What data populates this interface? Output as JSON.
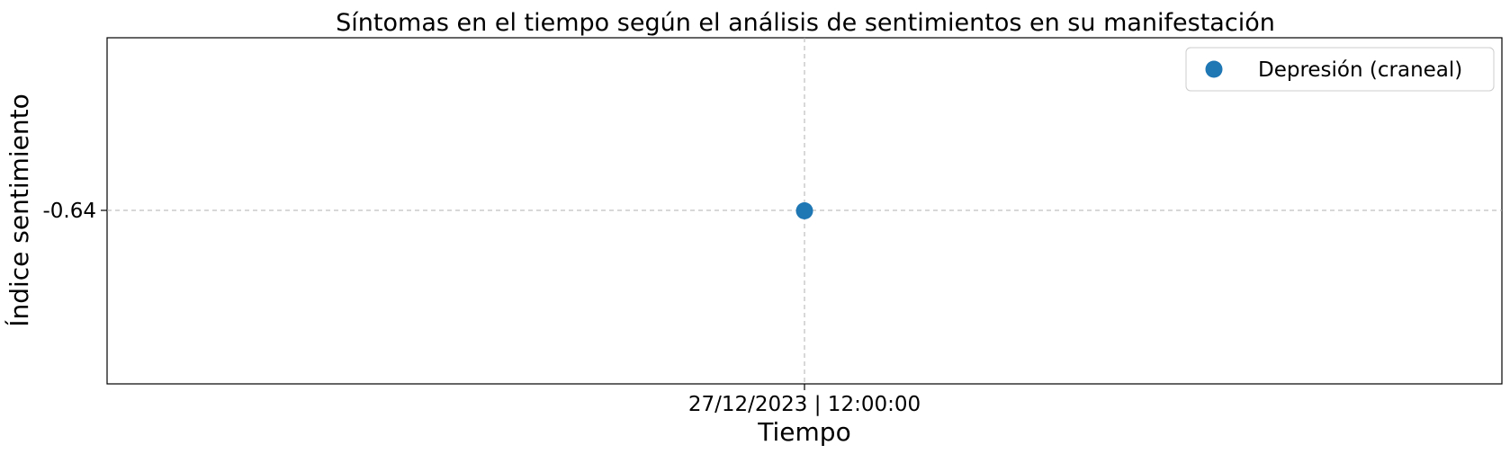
{
  "chart_data": {
    "type": "scatter",
    "title": "Síntomas en el tiempo según el análisis de sentimientos en su manifestación",
    "xlabel": "Tiempo",
    "ylabel": "Índice sentimiento",
    "x_ticks": [
      "27/12/2023 | 12:00:00"
    ],
    "y_ticks": [
      "-0.64"
    ],
    "grid": true,
    "legend_position": "top-right",
    "series": [
      {
        "name": "Depresión (craneal)",
        "color": "#1f77b4",
        "points": [
          {
            "x": "27/12/2023 | 12:00:00",
            "y": -0.64
          }
        ]
      }
    ]
  }
}
